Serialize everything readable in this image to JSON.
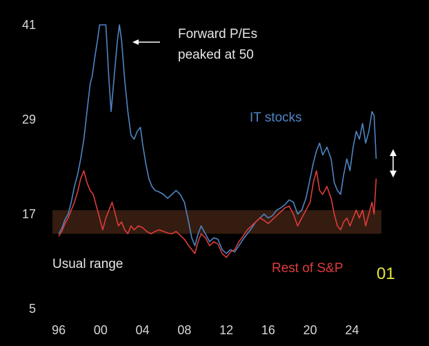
{
  "chart_data": {
    "type": "line",
    "ylim": [
      5,
      41
    ],
    "xlim": [
      1995.4,
      2026.8
    ],
    "y_ticks": [
      5,
      17,
      29,
      41
    ],
    "x_ticks": [
      {
        "value": 1996,
        "label": "96"
      },
      {
        "value": 2000,
        "label": "00"
      },
      {
        "value": 2004,
        "label": "04"
      },
      {
        "value": 2008,
        "label": "08"
      },
      {
        "value": 2012,
        "label": "12"
      },
      {
        "value": 2016,
        "label": "16"
      },
      {
        "value": 2020,
        "label": "20"
      },
      {
        "value": 2024,
        "label": "24"
      }
    ],
    "grid": false,
    "usual_range": {
      "label": "Usual range",
      "y_min": 14.5,
      "y_max": 17.5,
      "color": "#3a1f12"
    },
    "series": [
      {
        "name": "IT stocks",
        "color": "#4f86c6",
        "points": [
          [
            1996.0,
            14.5
          ],
          [
            1996.3,
            15.2
          ],
          [
            1996.6,
            16.3
          ],
          [
            1996.9,
            17.0
          ],
          [
            1997.2,
            18.5
          ],
          [
            1997.5,
            20.5
          ],
          [
            1997.8,
            22.0
          ],
          [
            1998.1,
            24.0
          ],
          [
            1998.4,
            26.5
          ],
          [
            1998.7,
            30.0
          ],
          [
            1999.0,
            33.5
          ],
          [
            1999.2,
            34.5
          ],
          [
            1999.4,
            36.5
          ],
          [
            1999.7,
            39.0
          ],
          [
            1999.9,
            41.0
          ],
          [
            2000.2,
            41.0
          ],
          [
            2000.5,
            41.0
          ],
          [
            2000.8,
            34.0
          ],
          [
            2001.0,
            30.0
          ],
          [
            2001.3,
            34.5
          ],
          [
            2001.6,
            39.0
          ],
          [
            2001.8,
            41.0
          ],
          [
            2002.0,
            39.0
          ],
          [
            2002.3,
            34.0
          ],
          [
            2002.6,
            30.0
          ],
          [
            2002.9,
            27.0
          ],
          [
            2003.2,
            26.5
          ],
          [
            2003.5,
            27.5
          ],
          [
            2003.8,
            28.0
          ],
          [
            2004.0,
            26.0
          ],
          [
            2004.3,
            23.5
          ],
          [
            2004.6,
            21.5
          ],
          [
            2004.9,
            20.5
          ],
          [
            2005.2,
            20.0
          ],
          [
            2005.6,
            19.8
          ],
          [
            2006.0,
            19.5
          ],
          [
            2006.4,
            19.0
          ],
          [
            2006.8,
            19.5
          ],
          [
            2007.2,
            20.0
          ],
          [
            2007.6,
            19.5
          ],
          [
            2008.0,
            18.5
          ],
          [
            2008.4,
            16.0
          ],
          [
            2008.7,
            14.0
          ],
          [
            2009.0,
            13.0
          ],
          [
            2009.3,
            14.5
          ],
          [
            2009.6,
            15.5
          ],
          [
            2010.0,
            14.5
          ],
          [
            2010.4,
            13.5
          ],
          [
            2010.8,
            14.0
          ],
          [
            2011.2,
            13.8
          ],
          [
            2011.6,
            12.5
          ],
          [
            2012.0,
            12.0
          ],
          [
            2012.4,
            12.5
          ],
          [
            2012.8,
            12.2
          ],
          [
            2013.2,
            13.0
          ],
          [
            2013.6,
            13.8
          ],
          [
            2014.0,
            14.5
          ],
          [
            2014.4,
            15.2
          ],
          [
            2014.8,
            16.0
          ],
          [
            2015.2,
            16.5
          ],
          [
            2015.6,
            17.0
          ],
          [
            2016.0,
            16.5
          ],
          [
            2016.4,
            16.8
          ],
          [
            2016.8,
            17.5
          ],
          [
            2017.2,
            17.8
          ],
          [
            2017.6,
            18.2
          ],
          [
            2018.0,
            18.8
          ],
          [
            2018.4,
            18.5
          ],
          [
            2018.8,
            17.0
          ],
          [
            2019.2,
            17.5
          ],
          [
            2019.6,
            19.0
          ],
          [
            2020.0,
            21.5
          ],
          [
            2020.3,
            23.5
          ],
          [
            2020.6,
            25.0
          ],
          [
            2020.9,
            26.0
          ],
          [
            2021.2,
            24.5
          ],
          [
            2021.6,
            25.5
          ],
          [
            2022.0,
            24.0
          ],
          [
            2022.3,
            21.0
          ],
          [
            2022.6,
            20.0
          ],
          [
            2022.9,
            19.5
          ],
          [
            2023.2,
            22.0
          ],
          [
            2023.5,
            24.0
          ],
          [
            2023.8,
            22.5
          ],
          [
            2024.1,
            25.5
          ],
          [
            2024.4,
            27.5
          ],
          [
            2024.7,
            26.5
          ],
          [
            2025.0,
            28.5
          ],
          [
            2025.3,
            26.0
          ],
          [
            2025.6,
            27.5
          ],
          [
            2025.9,
            30.0
          ],
          [
            2026.1,
            29.5
          ],
          [
            2026.3,
            24.0
          ]
        ]
      },
      {
        "name": "Rest of S&P",
        "color": "#e03c3c",
        "points": [
          [
            1996.0,
            14.2
          ],
          [
            1996.3,
            14.8
          ],
          [
            1996.6,
            15.8
          ],
          [
            1996.9,
            16.5
          ],
          [
            1997.2,
            17.5
          ],
          [
            1997.5,
            18.5
          ],
          [
            1997.8,
            19.8
          ],
          [
            1998.1,
            21.5
          ],
          [
            1998.4,
            22.5
          ],
          [
            1998.7,
            21.0
          ],
          [
            1999.0,
            20.0
          ],
          [
            1999.3,
            19.5
          ],
          [
            1999.6,
            18.0
          ],
          [
            1999.9,
            16.5
          ],
          [
            2000.2,
            15.0
          ],
          [
            2000.5,
            16.5
          ],
          [
            2000.8,
            17.5
          ],
          [
            2001.1,
            18.5
          ],
          [
            2001.4,
            17.0
          ],
          [
            2001.7,
            15.5
          ],
          [
            2002.0,
            16.0
          ],
          [
            2002.3,
            15.0
          ],
          [
            2002.6,
            14.5
          ],
          [
            2002.9,
            15.5
          ],
          [
            2003.2,
            15.0
          ],
          [
            2003.6,
            15.5
          ],
          [
            2004.0,
            15.3
          ],
          [
            2004.4,
            14.8
          ],
          [
            2004.8,
            14.5
          ],
          [
            2005.2,
            14.8
          ],
          [
            2005.6,
            15.0
          ],
          [
            2006.0,
            14.8
          ],
          [
            2006.4,
            14.6
          ],
          [
            2006.8,
            14.5
          ],
          [
            2007.2,
            14.8
          ],
          [
            2007.6,
            14.3
          ],
          [
            2008.0,
            13.8
          ],
          [
            2008.4,
            13.0
          ],
          [
            2008.7,
            12.5
          ],
          [
            2009.0,
            12.0
          ],
          [
            2009.3,
            13.5
          ],
          [
            2009.6,
            14.5
          ],
          [
            2010.0,
            14.0
          ],
          [
            2010.4,
            13.0
          ],
          [
            2010.8,
            13.5
          ],
          [
            2011.2,
            13.2
          ],
          [
            2011.6,
            12.0
          ],
          [
            2012.0,
            11.5
          ],
          [
            2012.4,
            12.2
          ],
          [
            2012.8,
            12.5
          ],
          [
            2013.2,
            13.5
          ],
          [
            2013.6,
            14.2
          ],
          [
            2014.0,
            15.0
          ],
          [
            2014.4,
            15.5
          ],
          [
            2014.8,
            16.0
          ],
          [
            2015.2,
            16.5
          ],
          [
            2015.6,
            16.2
          ],
          [
            2016.0,
            15.8
          ],
          [
            2016.4,
            16.3
          ],
          [
            2016.8,
            16.8
          ],
          [
            2017.2,
            17.3
          ],
          [
            2017.6,
            17.8
          ],
          [
            2018.0,
            18.0
          ],
          [
            2018.4,
            17.0
          ],
          [
            2018.8,
            15.5
          ],
          [
            2019.2,
            16.5
          ],
          [
            2019.6,
            17.5
          ],
          [
            2020.0,
            18.5
          ],
          [
            2020.3,
            21.0
          ],
          [
            2020.6,
            22.5
          ],
          [
            2020.9,
            20.0
          ],
          [
            2021.2,
            19.5
          ],
          [
            2021.6,
            20.5
          ],
          [
            2022.0,
            19.0
          ],
          [
            2022.3,
            17.0
          ],
          [
            2022.6,
            15.5
          ],
          [
            2022.9,
            15.0
          ],
          [
            2023.2,
            16.0
          ],
          [
            2023.5,
            16.5
          ],
          [
            2023.8,
            15.5
          ],
          [
            2024.1,
            16.5
          ],
          [
            2024.4,
            17.5
          ],
          [
            2024.7,
            16.5
          ],
          [
            2025.0,
            17.5
          ],
          [
            2025.3,
            15.5
          ],
          [
            2025.6,
            17.0
          ],
          [
            2025.9,
            18.5
          ],
          [
            2026.1,
            17.0
          ],
          [
            2026.3,
            21.5
          ]
        ]
      }
    ],
    "annotations": {
      "forward_pe_line1": "Forward P/Es",
      "forward_pe_line2": "peaked at 50",
      "it_label": "IT stocks",
      "rest_label": "Rest of S&P",
      "usual_range": "Usual range"
    }
  },
  "corner_label": "01",
  "colors": {
    "background": "#000000",
    "text": "#e0e0e0",
    "corner": "#e6e63a"
  }
}
